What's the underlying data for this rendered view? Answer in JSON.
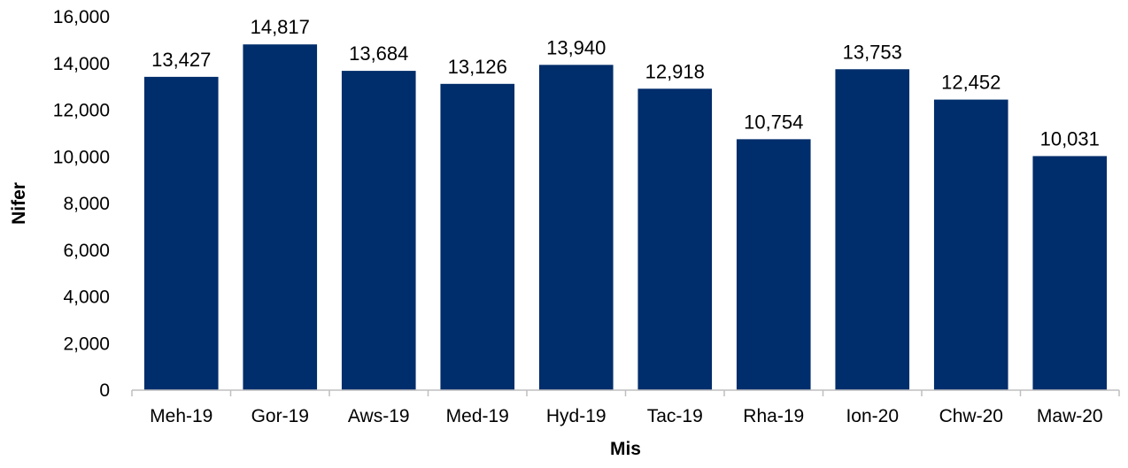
{
  "chart_data": {
    "type": "bar",
    "categories": [
      "Meh-19",
      "Gor-19",
      "Aws-19",
      "Med-19",
      "Hyd-19",
      "Tac-19",
      "Rha-19",
      "Ion-20",
      "Chw-20",
      "Maw-20"
    ],
    "values": [
      13427,
      14817,
      13684,
      13126,
      13940,
      12918,
      10754,
      13753,
      12452,
      10031
    ],
    "value_labels": [
      "13,427",
      "14,817",
      "13,684",
      "13,126",
      "13,940",
      "12,918",
      "10,754",
      "13,753",
      "12,452",
      "10,031"
    ],
    "title": "",
    "xlabel": "Mis",
    "ylabel": "Nifer",
    "ylim": [
      0,
      16000
    ],
    "yticks": [
      0,
      2000,
      4000,
      6000,
      8000,
      10000,
      12000,
      14000,
      16000
    ],
    "ytick_labels": [
      "0",
      "2,000",
      "4,000",
      "6,000",
      "8,000",
      "10,000",
      "12,000",
      "14,000",
      "16,000"
    ],
    "grid": false,
    "legend": "none",
    "bar_color": "#002D6B",
    "axis_color": "#BFBFBF"
  }
}
